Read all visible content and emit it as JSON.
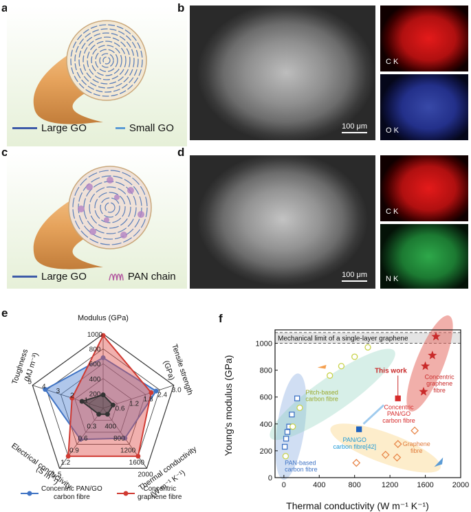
{
  "panels": {
    "a": {
      "label": "a",
      "legend_large": "Large GO",
      "legend_small": "Small GO",
      "colors": {
        "large": "#3d5aa8",
        "small": "#5b9bd5"
      }
    },
    "b": {
      "label": "b",
      "scale": "100 μm",
      "map1": "C K",
      "map2": "O K"
    },
    "c": {
      "label": "c",
      "legend_large": "Large GO",
      "legend_pan": "PAN chain"
    },
    "d": {
      "label": "d",
      "scale": "100 μm",
      "map1": "C K",
      "map2": "N K"
    },
    "e": {
      "label": "e"
    },
    "f": {
      "label": "f"
    }
  },
  "chart_data": [
    {
      "type": "radar",
      "axes": [
        {
          "name": "Modulus (GPa)",
          "ticks": [
            "200",
            "400",
            "600",
            "800",
            "1000"
          ]
        },
        {
          "name": "Tensile strength (GPa)",
          "ticks": [
            "0.6",
            "1.2",
            "1.8",
            "2.4",
            "3.0"
          ]
        },
        {
          "name": "Thermal conductivity (W m⁻¹ K⁻¹)",
          "ticks": [
            "400",
            "800",
            "1200",
            "1600",
            "2000"
          ]
        },
        {
          "name": "Electrical conductivity (S m⁻¹)",
          "ticks": [
            "0.3",
            "0.6",
            "0.9",
            "1.2",
            "1.5"
          ]
        },
        {
          "name": "Toughness (MJ m⁻³)",
          "ticks": [
            "1",
            "2",
            "3",
            "4",
            "5"
          ]
        }
      ],
      "axis_labels": {
        "modulus": "Modulus (GPa)",
        "tensile1": "Tensile strength",
        "tensile2": "(GPa)",
        "thermal1": "Thermal conductivity",
        "thermal2": "(W m⁻¹ K⁻¹)",
        "electrical1": "Electrical conductivity",
        "electrical2": "(S m⁻¹)",
        "toughness1": "Toughness",
        "toughness2": "(MJ m⁻³)"
      },
      "series": [
        {
          "name": "Concentric PAN/GO carbon fibre",
          "color": "#3f73c4",
          "fill": "rgba(80,130,210,0.45)",
          "values": [
            0.68,
            0.75,
            0.5,
            0.52,
            0.82
          ]
        },
        {
          "name": "Concentric graphene fibre",
          "color": "#d03a32",
          "fill": "rgba(225,80,75,0.45)",
          "values": [
            0.98,
            0.68,
            0.8,
            0.8,
            0.44
          ]
        },
        {
          "name": "",
          "color": "#333333",
          "fill": "rgba(60,60,60,0.5)",
          "values": [
            0.18,
            0.14,
            0.1,
            0.1,
            0.3
          ]
        }
      ],
      "legend": [
        {
          "label1": "Concentric PAN/GO",
          "label2": "carbon fibre",
          "color": "#3f73c4"
        },
        {
          "label1": "Concentric",
          "label2": "graphene fibre",
          "color": "#d03a32"
        }
      ]
    },
    {
      "type": "scatter",
      "xlabel": "Thermal conductivity (W m⁻¹ K⁻¹)",
      "ylabel": "Young's modulus (GPa)",
      "xlim": [
        -100,
        2000
      ],
      "ylim": [
        0,
        1100
      ],
      "xticks": [
        "0",
        "400",
        "800",
        "1200",
        "1600",
        "2000"
      ],
      "yticks": [
        "0",
        "200",
        "400",
        "600",
        "800",
        "1000"
      ],
      "limit_text": "Mechanical limit of a single-layer graphene",
      "limit_range": [
        1000,
        1080
      ],
      "series": [
        {
          "name": "PAN-based carbon fibre",
          "marker": "square",
          "color": "#3f73c4",
          "points": [
            [
              10,
              230
            ],
            [
              25,
              290
            ],
            [
              40,
              340
            ],
            [
              60,
              380
            ],
            [
              90,
              470
            ],
            [
              150,
              590
            ]
          ]
        },
        {
          "name": "Pitch-based carbon fibre",
          "marker": "circle",
          "color": "#c8d24a",
          "points": [
            [
              20,
              160
            ],
            [
              100,
              380
            ],
            [
              180,
              520
            ],
            [
              520,
              760
            ],
            [
              650,
              830
            ],
            [
              800,
              900
            ],
            [
              950,
              970
            ]
          ]
        },
        {
          "name": "Graphene fibre",
          "marker": "diamond",
          "color": "#e8874a",
          "points": [
            [
              820,
              110
            ],
            [
              1150,
              170
            ],
            [
              1280,
              150
            ],
            [
              1290,
              250
            ],
            [
              1480,
              350
            ]
          ]
        },
        {
          "name": "PAN/GO carbon fibre",
          "marker": "square",
          "color": "#1f63c0",
          "points": [
            [
              850,
              360
            ]
          ]
        },
        {
          "name": "Concentric PAN/GO carbon fibre",
          "marker": "square",
          "color": "#d62a2a",
          "points": [
            [
              1290,
              590
            ]
          ]
        },
        {
          "name": "Concentric graphene fibre",
          "marker": "star",
          "color": "#c92a2a",
          "points": [
            [
              1580,
              640
            ],
            [
              1600,
              830
            ],
            [
              1680,
              910
            ],
            [
              1720,
              1050
            ]
          ]
        }
      ],
      "labels": {
        "pan1": "PAN-based",
        "pan2": "carbon fibre",
        "pitch1": "Pitch-based",
        "pitch2": "carbon fibre",
        "graphene1": "Graphene",
        "graphene2": "fibre",
        "pango1": "PAN/GO",
        "pango2": "carbon fibre[42]",
        "cpango1": "Concentric",
        "cpango2": "PAN/GO",
        "cpango3": "carbon fibre",
        "cg1": "Concentric",
        "cg2": "graphene",
        "cg3": "fibre",
        "this_work": "This work"
      }
    }
  ]
}
